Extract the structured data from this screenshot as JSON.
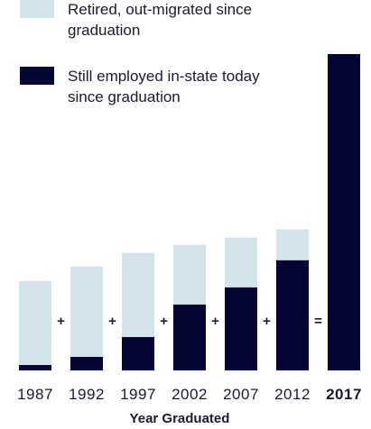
{
  "chart_data": {
    "type": "bar",
    "stacked": true,
    "categories": [
      "1987",
      "1992",
      "1997",
      "2002",
      "2007",
      "2012",
      "2017"
    ],
    "highlight_category": "2017",
    "series": [
      {
        "name": "Still employed in-state today since graduation",
        "color": "#040535",
        "values": [
          6,
          15,
          37,
          73,
          92,
          122,
          350
        ]
      },
      {
        "name": "Retired, out-migrated since graduation",
        "color": "#d3e3ea",
        "values": [
          93,
          100,
          93,
          66,
          55,
          34,
          0
        ]
      }
    ],
    "operators": [
      "+",
      "+",
      "+",
      "+",
      "+",
      "="
    ],
    "legend": {
      "position": "top-left",
      "items": [
        {
          "lines": [
            "Retired, out-migrated since",
            "graduation"
          ],
          "color": "#d3e3ea"
        },
        {
          "lines": [
            "Still employed in-state today",
            "since graduation"
          ],
          "color": "#040535"
        }
      ]
    },
    "xlabel": "Year Graduated",
    "ylabel": "",
    "ylim": [
      0,
      350
    ],
    "grid": false
  }
}
